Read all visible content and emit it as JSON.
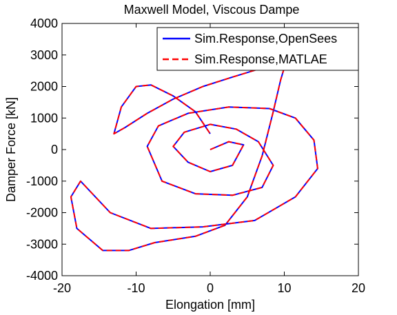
{
  "chart_data": {
    "type": "line",
    "title": "Maxwell Model, Viscous Dampe",
    "xlabel": "Elongation [mm]",
    "ylabel": "Damper Force [kN]",
    "xlim": [
      -20,
      20
    ],
    "ylim": [
      -4000,
      4000
    ],
    "xticks": [
      -20,
      -10,
      0,
      10,
      20
    ],
    "yticks": [
      -4000,
      -3000,
      -2000,
      -1000,
      0,
      1000,
      2000,
      3000,
      4000
    ],
    "xtick_labels": [
      "-20",
      "-10",
      "0",
      "10",
      "20"
    ],
    "ytick_labels": [
      "-4000",
      "-3000",
      "-2000",
      "-1000",
      "0",
      "1000",
      "2000",
      "3000",
      "4000"
    ],
    "grid": false,
    "legend": {
      "position": "top-right"
    },
    "series": [
      {
        "name": "Sim.Response,OpenSees",
        "color": "#0000ff",
        "style": "solid",
        "x": [
          0.0,
          2.5,
          4.5,
          3.0,
          0.0,
          -3.0,
          -5.0,
          -3.5,
          0.0,
          3.5,
          6.5,
          8.5,
          7.0,
          3.0,
          -2.0,
          -6.5,
          -8.5,
          -7.0,
          -3.0,
          2.5,
          8.0,
          11.5,
          14.0,
          14.5,
          11.5,
          6.0,
          -1.0,
          -8.0,
          -13.5,
          -17.5,
          -18.8,
          -18.0,
          -14.5,
          -11.0,
          -7.5,
          -2.0,
          2.0,
          5.0,
          7.0,
          8.5,
          9.5,
          10.0,
          9.0,
          6.5,
          3.0,
          -1.0,
          -5.0,
          -8.5,
          -11.5,
          -13.0,
          -12.0,
          -10.0,
          -8.0,
          -5.0,
          -2.0,
          0.0
        ],
        "y": [
          0,
          250,
          150,
          -500,
          -700,
          -400,
          100,
          550,
          800,
          650,
          250,
          -500,
          -1200,
          -1450,
          -1400,
          -1000,
          100,
          750,
          1150,
          1350,
          1300,
          1000,
          300,
          -600,
          -1500,
          -2250,
          -2450,
          -2500,
          -2000,
          -1000,
          -1500,
          -2500,
          -3200,
          -3200,
          -2950,
          -2750,
          -2400,
          -1500,
          -200,
          1200,
          2200,
          2600,
          2650,
          2550,
          2300,
          2000,
          1600,
          1150,
          700,
          500,
          1350,
          2000,
          2050,
          1700,
          1200,
          500
        ]
      },
      {
        "name": "Sim.Response,MATLAE",
        "color": "#ff0000",
        "style": "dashed",
        "x": [
          0.0,
          2.5,
          4.5,
          3.0,
          0.0,
          -3.0,
          -5.0,
          -3.5,
          0.0,
          3.5,
          6.5,
          8.5,
          7.0,
          3.0,
          -2.0,
          -6.5,
          -8.5,
          -7.0,
          -3.0,
          2.5,
          8.0,
          11.5,
          14.0,
          14.5,
          11.5,
          6.0,
          -1.0,
          -8.0,
          -13.5,
          -17.5,
          -18.8,
          -18.0,
          -14.5,
          -11.0,
          -7.5,
          -2.0,
          2.0,
          5.0,
          7.0,
          8.5,
          9.5,
          10.0,
          9.0,
          6.5,
          3.0,
          -1.0,
          -5.0,
          -8.5,
          -11.5,
          -13.0,
          -12.0,
          -10.0,
          -8.0,
          -5.0,
          -2.0,
          0.0
        ],
        "y": [
          0,
          250,
          150,
          -500,
          -700,
          -400,
          100,
          550,
          800,
          650,
          250,
          -500,
          -1200,
          -1450,
          -1400,
          -1000,
          100,
          750,
          1150,
          1350,
          1300,
          1000,
          300,
          -600,
          -1500,
          -2250,
          -2450,
          -2500,
          -2000,
          -1000,
          -1500,
          -2500,
          -3200,
          -3200,
          -2950,
          -2750,
          -2400,
          -1500,
          -200,
          1200,
          2200,
          2600,
          2650,
          2550,
          2300,
          2000,
          1600,
          1150,
          700,
          500,
          1350,
          2000,
          2050,
          1700,
          1200,
          500
        ]
      }
    ]
  }
}
